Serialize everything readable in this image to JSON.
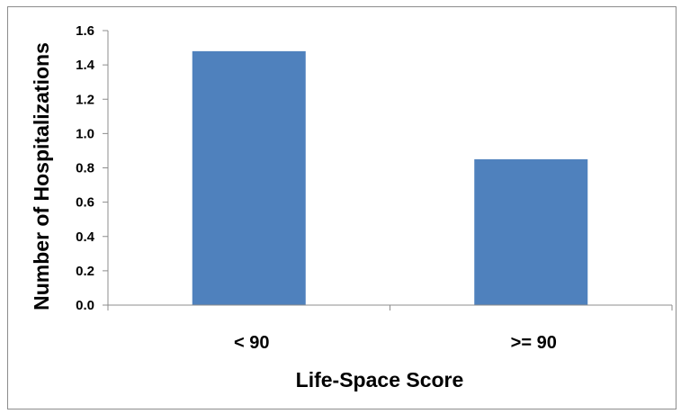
{
  "chart_data": {
    "type": "bar",
    "title": "",
    "categories": [
      "< 90",
      ">= 90"
    ],
    "values": [
      1.48,
      0.85
    ],
    "xlabel": "Life-Space Score",
    "ylabel": "Number of Hospitalizations",
    "ylim": [
      0,
      1.6
    ],
    "y_ticks": [
      "0.0",
      "0.2",
      "0.4",
      "0.6",
      "0.8",
      "1.0",
      "1.2",
      "1.4",
      "1.6"
    ],
    "grid": false,
    "legend": "none",
    "bar_color": "#4f81bd"
  }
}
